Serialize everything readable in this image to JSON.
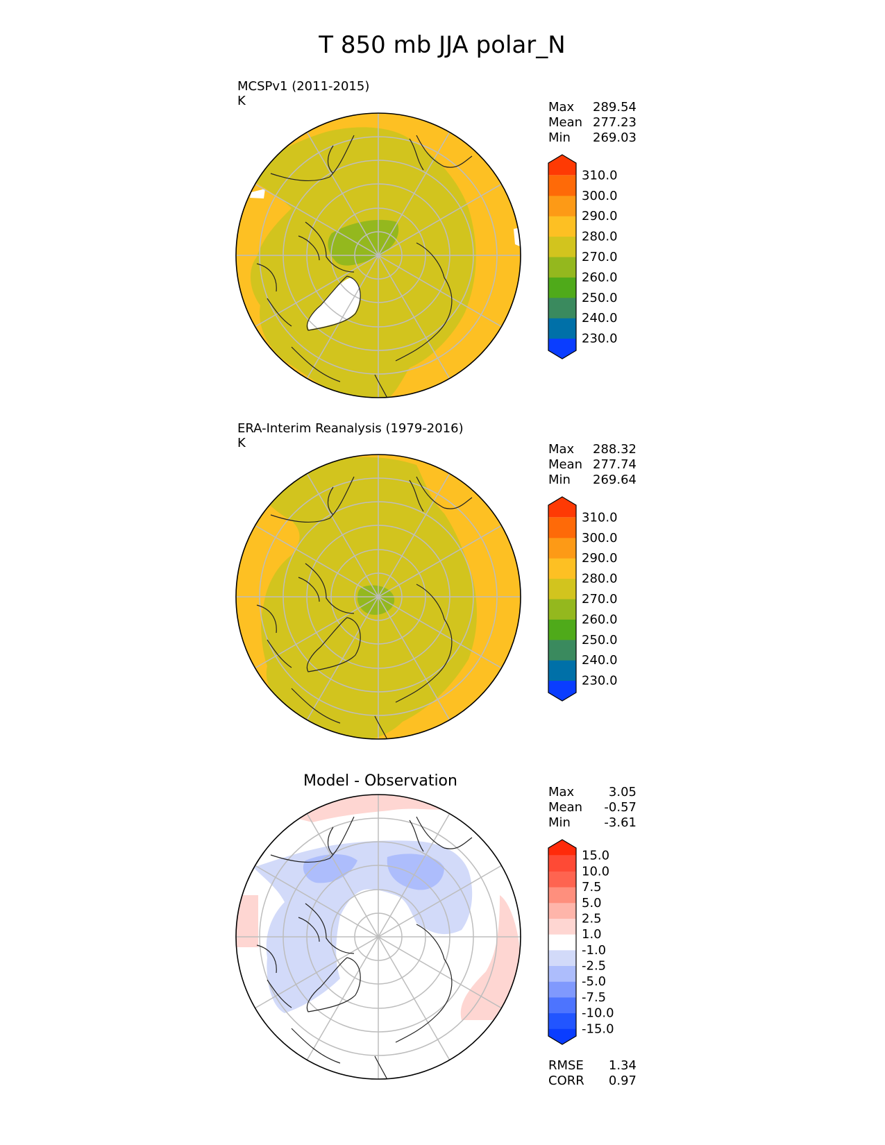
{
  "figure": {
    "title": "T 850 mb JJA polar_N"
  },
  "chart_data": [
    {
      "type": "heatmap",
      "projection": "north-polar-stereographic",
      "title": "MCSPv1 (2011-2015)",
      "units": "K",
      "stats": {
        "max_label": "Max",
        "max": "289.54",
        "mean_label": "Mean",
        "mean": "277.23",
        "min_label": "Min",
        "min": "269.03"
      },
      "colorbar": {
        "ticks": [
          "230.0",
          "240.0",
          "250.0",
          "260.0",
          "270.0",
          "280.0",
          "290.0",
          "300.0",
          "310.0"
        ],
        "colors": [
          "#0a3dff",
          "#0070a8",
          "#3a8a5e",
          "#4faa1a",
          "#94b81e",
          "#d2c41e",
          "#fdc023",
          "#fd9a16",
          "#fe6a08",
          "#fe3a04"
        ],
        "extend": "both"
      },
      "field": {
        "land_contour": "coastlines",
        "grid": true,
        "missing_regions": [
          "Greenland interior",
          "western Europe edge",
          "eastern edge"
        ],
        "dominant_band": "270.0-280.0",
        "outer_band": "280.0-290.0",
        "central_band": "260.0-270.0"
      }
    },
    {
      "type": "heatmap",
      "projection": "north-polar-stereographic",
      "title": "ERA-Interim Reanalysis (1979-2016)",
      "units": "K",
      "stats": {
        "max_label": "Max",
        "max": "288.32",
        "mean_label": "Mean",
        "mean": "277.74",
        "min_label": "Min",
        "min": "269.64"
      },
      "colorbar": {
        "ticks": [
          "230.0",
          "240.0",
          "250.0",
          "260.0",
          "270.0",
          "280.0",
          "290.0",
          "300.0",
          "310.0"
        ],
        "colors": [
          "#0a3dff",
          "#0070a8",
          "#3a8a5e",
          "#4faa1a",
          "#94b81e",
          "#d2c41e",
          "#fdc023",
          "#fd9a16",
          "#fe6a08",
          "#fe3a04"
        ],
        "extend": "both"
      },
      "field": {
        "land_contour": "coastlines",
        "grid": true,
        "dominant_band": "270.0-280.0",
        "outer_band": "280.0-290.0",
        "central_band": "260.0-270.0"
      }
    },
    {
      "type": "heatmap",
      "projection": "north-polar-stereographic",
      "title": "Model - Observation",
      "stats": {
        "max_label": "Max",
        "max": "3.05",
        "mean_label": "Mean",
        "mean": "-0.57",
        "min_label": "Min",
        "min": "-3.61",
        "rmse_label": "RMSE",
        "rmse": "1.34",
        "corr_label": "CORR",
        "corr": "0.97"
      },
      "colorbar": {
        "ticks": [
          "-15.0",
          "-10.0",
          "-7.5",
          "-5.0",
          "-2.5",
          "-1.0",
          "1.0",
          "2.5",
          "5.0",
          "7.5",
          "10.0",
          "15.0"
        ],
        "colors": [
          "#0a3dff",
          "#2255ff",
          "#4d74fe",
          "#8099fd",
          "#adbdfc",
          "#d2daf9",
          "#ffffff",
          "#fed6d2",
          "#feb5aa",
          "#fe8f7d",
          "#fe6450",
          "#fe4a35",
          "#ff2a0a"
        ],
        "extend": "both"
      },
      "field": {
        "land_contour": "coastlines",
        "grid": true,
        "dominant_band": "-1.0-1.0",
        "negative_region_bands": [
          "-2.5--1.0",
          "-5.0--2.5"
        ],
        "positive_region_bands": [
          "1.0-2.5",
          "2.5-5.0"
        ]
      }
    }
  ]
}
